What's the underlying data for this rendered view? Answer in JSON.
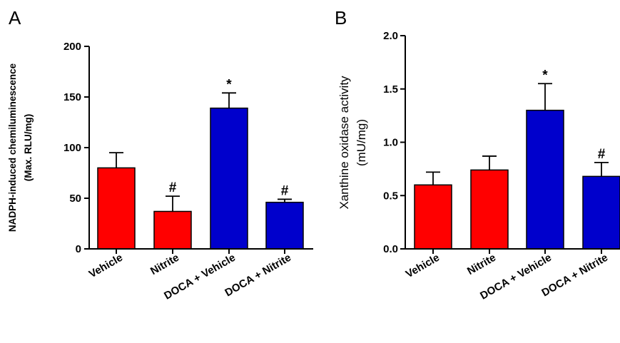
{
  "chart_data": [
    {
      "type": "bar",
      "panel": "A",
      "ylabel_lines": [
        "NADPH-induced chemiluminescence",
        "(Max. RLU/mg)"
      ],
      "xlabel": "",
      "ylim": [
        0,
        200
      ],
      "yticks": [
        0,
        50,
        100,
        150,
        200
      ],
      "yticks_labels": [
        "0",
        "50",
        "100",
        "150",
        "200"
      ],
      "categories": [
        "Vehicle",
        "Nitrite",
        "DOCA + Vehicle",
        "DOCA + Nitrite"
      ],
      "values": [
        80,
        37,
        139,
        46
      ],
      "errors": [
        15,
        15,
        15,
        3
      ],
      "colors": [
        "#ff0000",
        "#ff0000",
        "#0000cc",
        "#0000cc"
      ],
      "annotations": [
        "",
        "#",
        "*",
        "#"
      ],
      "grid": false,
      "legend": "none"
    },
    {
      "type": "bar",
      "panel": "B",
      "ylabel_lines": [
        "Xanthine oxidase activity",
        "(mU/mg)"
      ],
      "xlabel": "",
      "ylim": [
        0,
        2.0
      ],
      "yticks": [
        0,
        0.5,
        1.0,
        1.5,
        2.0
      ],
      "yticks_labels": [
        "0.0",
        "0.5",
        "1.0",
        "1.5",
        "2.0"
      ],
      "categories": [
        "Vehicle",
        "Nitrite",
        "DOCA + Vehicle",
        "DOCA + Nitrite"
      ],
      "values": [
        0.6,
        0.74,
        1.3,
        0.68
      ],
      "errors": [
        0.12,
        0.13,
        0.25,
        0.13
      ],
      "colors": [
        "#ff0000",
        "#ff0000",
        "#0000cc",
        "#0000cc"
      ],
      "annotations": [
        "",
        "",
        "*",
        "#"
      ],
      "grid": false,
      "legend": "none"
    }
  ]
}
